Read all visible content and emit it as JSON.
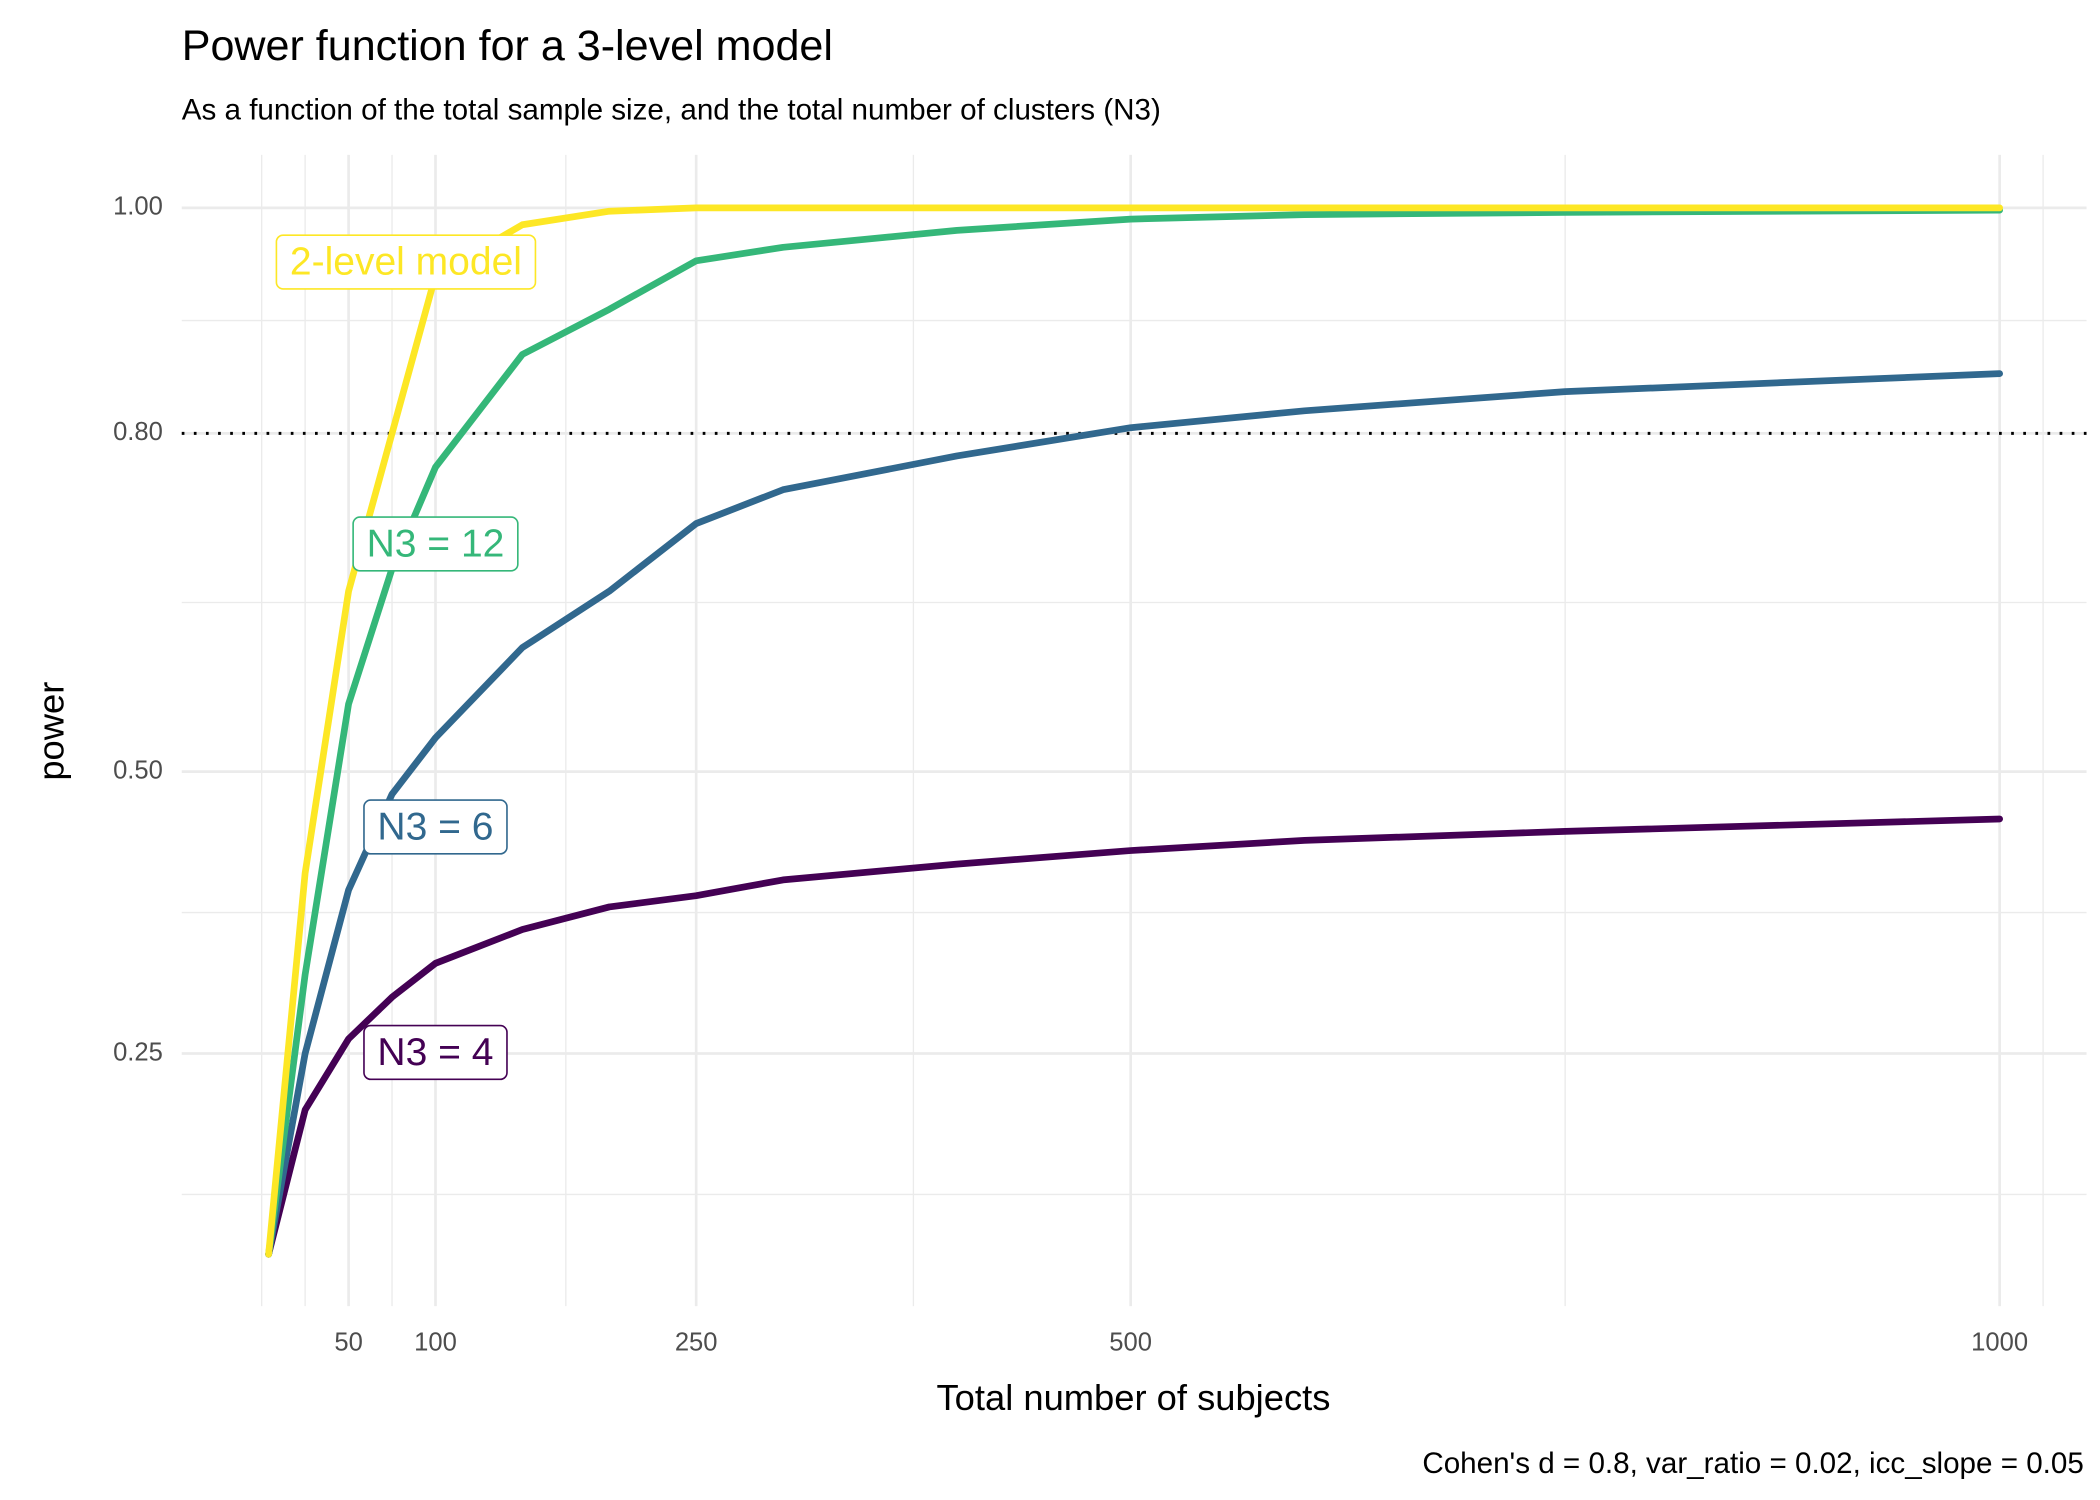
{
  "chart_data": {
    "type": "line",
    "title": "Power function for a 3-level model",
    "subtitle": "As a function of the total sample size, and the total number of clusters (N3)",
    "x_label": "Total number of subjects",
    "y_label": "power",
    "caption": "Cohen's d = 0.8, var_ratio = 0.02, icc_slope = 0.05",
    "x": [
      4,
      25,
      50,
      75,
      100,
      150,
      200,
      250,
      300,
      400,
      500,
      600,
      750,
      1000
    ],
    "series": [
      {
        "name": "N3 = 4",
        "color": "#440154",
        "values": [
          0.072,
          0.2,
          0.263,
          0.3,
          0.33,
          0.36,
          0.38,
          0.39,
          0.404,
          0.418,
          0.43,
          0.439,
          0.447,
          0.458
        ]
      },
      {
        "name": "N3 = 6",
        "color": "#31688E",
        "values": [
          0.072,
          0.25,
          0.395,
          0.48,
          0.53,
          0.61,
          0.66,
          0.72,
          0.75,
          0.78,
          0.805,
          0.82,
          0.837,
          0.853
        ]
      },
      {
        "name": "N3 = 12",
        "color": "#35B779",
        "values": [
          0.072,
          0.32,
          0.56,
          0.68,
          0.77,
          0.87,
          0.91,
          0.953,
          0.965,
          0.98,
          0.99,
          0.994,
          0.996,
          0.998
        ]
      },
      {
        "name": "2-level model",
        "color": "#FDE725",
        "values": [
          0.072,
          0.41,
          0.66,
          0.8,
          0.94,
          0.985,
          0.997,
          1.0,
          1.0,
          1.0,
          1.0,
          1.0,
          1.0,
          1.0
        ]
      }
    ],
    "hline": 0.8,
    "xlim": [
      -46,
      1050
    ],
    "ylim": [
      0.026,
      1.047
    ],
    "xticks": [
      50,
      100,
      250,
      500,
      1000
    ],
    "yticks": [
      {
        "value": 0.25,
        "label": "0.25"
      },
      {
        "value": 0.5,
        "label": "0.50"
      },
      {
        "value": 0.8,
        "label": "0.80"
      },
      {
        "value": 1,
        "label": "1.00"
      }
    ],
    "xminor": [
      0,
      25,
      75,
      175,
      375,
      750,
      1025
    ],
    "yminor": [
      0.125,
      0.375,
      0.65,
      0.9
    ],
    "grid": true
  }
}
